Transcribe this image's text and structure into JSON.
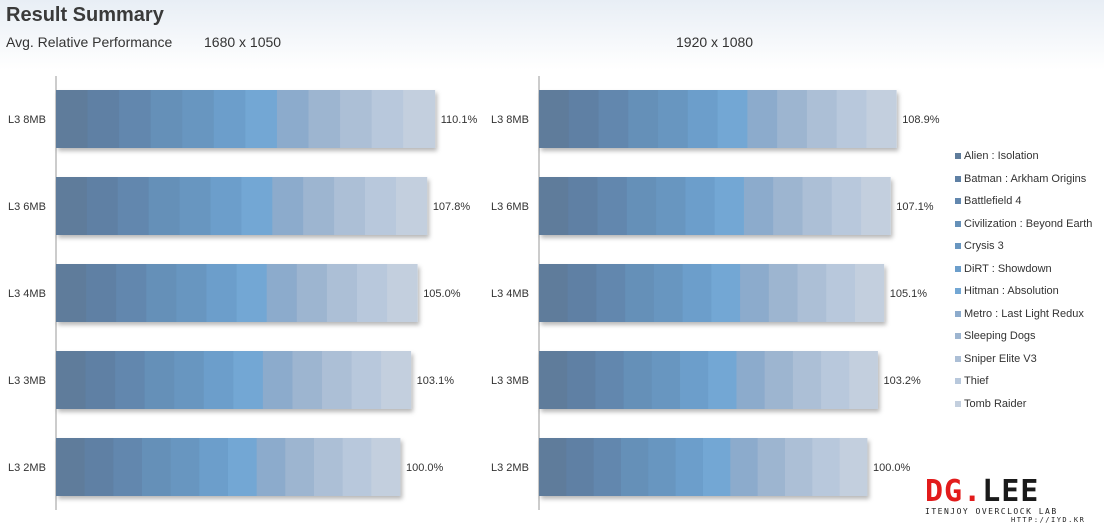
{
  "header": {
    "title": "Result Summary",
    "subtitle": "Avg. Relative Performance"
  },
  "chart_data": [
    {
      "type": "bar",
      "orientation": "horizontal",
      "stacked": true,
      "title": "1680 x 1050",
      "categories": [
        "L3 8MB",
        "L3 6MB",
        "L3 4MB",
        "L3 3MB",
        "L3 2MB"
      ],
      "totals": [
        110.1,
        107.8,
        105.0,
        103.1,
        100.0
      ],
      "total_labels": [
        "110.1%",
        "107.8%",
        "105.0%",
        "103.1%",
        "100.0%"
      ],
      "series": [
        {
          "name": "Alien : Isolation",
          "values": [
            9.175,
            8.983,
            8.75,
            8.592,
            8.333
          ]
        },
        {
          "name": "Batman : Arkham Origins",
          "values": [
            9.175,
            8.983,
            8.75,
            8.592,
            8.333
          ]
        },
        {
          "name": "Battlefield 4",
          "values": [
            9.175,
            8.983,
            8.75,
            8.592,
            8.333
          ]
        },
        {
          "name": "Civilization : Beyond Earth",
          "values": [
            9.175,
            8.983,
            8.75,
            8.592,
            8.333
          ]
        },
        {
          "name": "Crysis 3",
          "values": [
            9.175,
            8.983,
            8.75,
            8.592,
            8.333
          ]
        },
        {
          "name": "DiRT : Showdown",
          "values": [
            9.175,
            8.983,
            8.75,
            8.592,
            8.333
          ]
        },
        {
          "name": "Hitman : Absolution",
          "values": [
            9.175,
            8.983,
            8.75,
            8.592,
            8.333
          ]
        },
        {
          "name": "Metro : Last Light Redux",
          "values": [
            9.175,
            8.983,
            8.75,
            8.592,
            8.333
          ]
        },
        {
          "name": "Sleeping Dogs",
          "values": [
            9.175,
            8.983,
            8.75,
            8.592,
            8.333
          ]
        },
        {
          "name": "Sniper Elite V3",
          "values": [
            9.175,
            8.983,
            8.75,
            8.592,
            8.333
          ]
        },
        {
          "name": "Thief",
          "values": [
            9.175,
            8.983,
            8.75,
            8.592,
            8.333
          ]
        },
        {
          "name": "Tomb Raider",
          "values": [
            9.175,
            8.983,
            8.75,
            8.592,
            8.333
          ]
        }
      ],
      "xlim": [
        0,
        120
      ],
      "grid": false,
      "legend": "right"
    },
    {
      "type": "bar",
      "orientation": "horizontal",
      "stacked": true,
      "title": "1920 x 1080",
      "categories": [
        "L3 8MB",
        "L3 6MB",
        "L3 4MB",
        "L3 3MB",
        "L3 2MB"
      ],
      "totals": [
        108.9,
        107.1,
        105.1,
        103.2,
        100.0
      ],
      "total_labels": [
        "108.9%",
        "107.1%",
        "105.1%",
        "103.2%",
        "100.0%"
      ],
      "series": [
        {
          "name": "Alien : Isolation",
          "values": [
            9.075,
            8.925,
            8.758,
            8.6,
            8.333
          ]
        },
        {
          "name": "Batman : Arkham Origins",
          "values": [
            9.075,
            8.925,
            8.758,
            8.6,
            8.333
          ]
        },
        {
          "name": "Battlefield 4",
          "values": [
            9.075,
            8.925,
            8.758,
            8.6,
            8.333
          ]
        },
        {
          "name": "Civilization : Beyond Earth",
          "values": [
            9.075,
            8.925,
            8.758,
            8.6,
            8.333
          ]
        },
        {
          "name": "Crysis 3",
          "values": [
            9.075,
            8.925,
            8.758,
            8.6,
            8.333
          ]
        },
        {
          "name": "DiRT : Showdown",
          "values": [
            9.075,
            8.925,
            8.758,
            8.6,
            8.333
          ]
        },
        {
          "name": "Hitman : Absolution",
          "values": [
            9.075,
            8.925,
            8.758,
            8.6,
            8.333
          ]
        },
        {
          "name": "Metro : Last Light Redux",
          "values": [
            9.075,
            8.925,
            8.758,
            8.6,
            8.333
          ]
        },
        {
          "name": "Sleeping Dogs",
          "values": [
            9.075,
            8.925,
            8.758,
            8.6,
            8.333
          ]
        },
        {
          "name": "Sniper Elite V3",
          "values": [
            9.075,
            8.925,
            8.758,
            8.6,
            8.333
          ]
        },
        {
          "name": "Thief",
          "values": [
            9.075,
            8.925,
            8.758,
            8.6,
            8.333
          ]
        },
        {
          "name": "Tomb Raider",
          "values": [
            9.075,
            8.925,
            8.758,
            8.6,
            8.333
          ]
        }
      ],
      "xlim": [
        0,
        120
      ],
      "grid": false,
      "legend": "right"
    }
  ],
  "series_colors": [
    "#5f7c9b",
    "#5f80a4",
    "#6287ae",
    "#6590b8",
    "#6896c0",
    "#6c9ecb",
    "#73a7d4",
    "#8cabcc",
    "#9db5d0",
    "#acbfd6",
    "#b8c8dc",
    "#c3cfde"
  ],
  "logo": {
    "brand_red": "DG.",
    "brand_black": "LEE",
    "tagline": "ITENJOY OVERCLOCK LAB",
    "url": "HTTP://IYD.KR"
  }
}
